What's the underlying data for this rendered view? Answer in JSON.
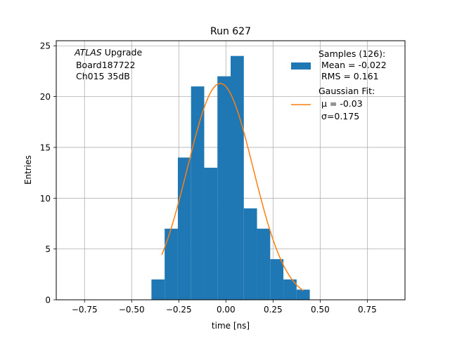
{
  "chart_data": {
    "type": "bar",
    "title": "Run 627",
    "xlabel": "time [ns]",
    "ylabel": "Entries",
    "xlim": [
      -0.9,
      0.95
    ],
    "ylim": [
      0,
      25.5
    ],
    "grid": true,
    "legend_position": "top-right",
    "xticks": [
      -0.75,
      -0.5,
      -0.25,
      0.0,
      0.25,
      0.5,
      0.75
    ],
    "xtick_labels": [
      "−0.75",
      "−0.50",
      "−0.25",
      "0.00",
      "0.25",
      "0.50",
      "0.75"
    ],
    "yticks": [
      0,
      5,
      10,
      15,
      20,
      25
    ],
    "ytick_labels": [
      "0",
      "5",
      "10",
      "15",
      "20",
      "25"
    ],
    "bin_edges": [
      -0.395,
      -0.325,
      -0.255,
      -0.185,
      -0.115,
      -0.045,
      0.025,
      0.095,
      0.165,
      0.235,
      0.305,
      0.375,
      0.445
    ],
    "counts": [
      2,
      7,
      14,
      21,
      13,
      22,
      24,
      9,
      7,
      4,
      2,
      1
    ],
    "bar_color": "#1f77b4",
    "fit": {
      "mu": -0.03,
      "sigma": 0.175,
      "peak": 21.3,
      "x_range": [
        -0.34,
        0.41
      ],
      "color": "#ff7f0e"
    },
    "annotation": [
      "ATLAS Upgrade",
      " Board187722",
      " Ch015 35dB"
    ],
    "annotation_italic_word": "ATLAS",
    "legend": {
      "samples": [
        "Samples (126):",
        " Mean = -0.022",
        " RMS = 0.161"
      ],
      "fit": [
        "Gaussian Fit:",
        " μ = -0.03",
        " σ=0.175"
      ]
    }
  }
}
